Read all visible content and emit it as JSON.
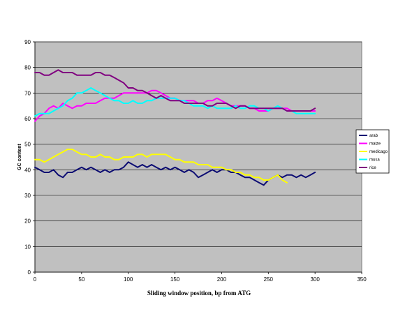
{
  "chart_data": {
    "type": "line",
    "title": "",
    "xlabel": "Sliding window position, bp from ATG",
    "ylabel": "GC content",
    "xlim": [
      0,
      350
    ],
    "ylim": [
      0,
      90
    ],
    "xticks": [
      0,
      50,
      100,
      150,
      200,
      250,
      300,
      350
    ],
    "yticks": [
      0,
      10,
      20,
      30,
      40,
      50,
      60,
      70,
      80,
      90
    ],
    "grid": "horizontal",
    "legend_position": "right",
    "plot_background": "#c0c0c0",
    "series": [
      {
        "name": "arab",
        "color": "#0d0d73",
        "x": [
          0,
          5,
          10,
          15,
          20,
          25,
          30,
          35,
          40,
          45,
          50,
          55,
          60,
          65,
          70,
          75,
          80,
          85,
          90,
          95,
          100,
          105,
          110,
          115,
          120,
          125,
          130,
          135,
          140,
          145,
          150,
          155,
          160,
          165,
          170,
          175,
          180,
          185,
          190,
          195,
          200,
          205,
          210,
          215,
          220,
          225,
          230,
          235,
          240,
          245,
          250,
          255,
          260,
          265,
          270,
          275,
          280,
          285,
          290,
          295,
          300
        ],
        "values": [
          41,
          40,
          39,
          39,
          40,
          38,
          37,
          39,
          39,
          40,
          41,
          40,
          41,
          40,
          39,
          40,
          39,
          40,
          40,
          41,
          43,
          42,
          41,
          42,
          41,
          42,
          41,
          40,
          41,
          40,
          41,
          40,
          39,
          40,
          39,
          37,
          38,
          39,
          40,
          39,
          40,
          40,
          39,
          39,
          38,
          37,
          37,
          36,
          35,
          34,
          36,
          37,
          38,
          37,
          38,
          38,
          37,
          38,
          37,
          38,
          39
        ]
      },
      {
        "name": "maize",
        "color": "#ff00ff",
        "x": [
          0,
          5,
          10,
          15,
          20,
          25,
          30,
          35,
          40,
          45,
          50,
          55,
          60,
          65,
          70,
          75,
          80,
          85,
          90,
          95,
          100,
          105,
          110,
          115,
          120,
          125,
          130,
          135,
          140,
          145,
          150,
          155,
          160,
          165,
          170,
          175,
          180,
          185,
          190,
          195,
          200,
          205,
          210,
          215,
          220,
          225,
          230,
          235,
          240,
          245,
          250,
          255,
          260,
          265,
          270,
          275,
          280,
          285,
          290,
          295,
          300
        ],
        "values": [
          59,
          61,
          62,
          64,
          65,
          64,
          66,
          65,
          64,
          65,
          65,
          66,
          66,
          66,
          67,
          68,
          68,
          68,
          69,
          70,
          70,
          70,
          70,
          70,
          70,
          71,
          71,
          70,
          69,
          68,
          68,
          67,
          67,
          67,
          67,
          66,
          66,
          67,
          67,
          68,
          67,
          66,
          65,
          65,
          65,
          65,
          64,
          64,
          63,
          63,
          63,
          64,
          64,
          64,
          64,
          63,
          63,
          63,
          63,
          63,
          63
        ]
      },
      {
        "name": "medicago",
        "color": "#ffff00",
        "x": [
          0,
          5,
          10,
          15,
          20,
          25,
          30,
          35,
          40,
          45,
          50,
          55,
          60,
          65,
          70,
          75,
          80,
          85,
          90,
          95,
          100,
          105,
          110,
          115,
          120,
          125,
          130,
          135,
          140,
          145,
          150,
          155,
          160,
          165,
          170,
          175,
          180,
          185,
          190,
          195,
          200,
          205,
          210,
          215,
          220,
          225,
          230,
          235,
          240,
          245,
          250,
          255,
          260,
          265,
          270
        ],
        "values": [
          44,
          44,
          43,
          44,
          45,
          46,
          47,
          48,
          48,
          47,
          46,
          46,
          45,
          45,
          46,
          45,
          45,
          44,
          44,
          45,
          45,
          45,
          46,
          46,
          45,
          46,
          46,
          46,
          46,
          45,
          44,
          44,
          43,
          43,
          43,
          42,
          42,
          42,
          41,
          41,
          41,
          40,
          40,
          39,
          39,
          38,
          38,
          37,
          37,
          36,
          36,
          37,
          38,
          36,
          35
        ]
      },
      {
        "name": "musa",
        "color": "#00ffff",
        "x": [
          0,
          5,
          10,
          15,
          20,
          25,
          30,
          35,
          40,
          45,
          50,
          55,
          60,
          65,
          70,
          75,
          80,
          85,
          90,
          95,
          100,
          105,
          110,
          115,
          120,
          125,
          130,
          135,
          140,
          145,
          150,
          155,
          160,
          165,
          170,
          175,
          180,
          185,
          190,
          195,
          200,
          205,
          210,
          215,
          220,
          225,
          230,
          235,
          240,
          245,
          250,
          255,
          260,
          265,
          270,
          275,
          280,
          285,
          290,
          295,
          300
        ],
        "values": [
          61,
          62,
          62,
          62,
          63,
          64,
          65,
          67,
          68,
          70,
          70,
          71,
          72,
          71,
          70,
          69,
          68,
          67,
          67,
          66,
          66,
          67,
          66,
          66,
          67,
          67,
          68,
          68,
          68,
          68,
          68,
          67,
          67,
          66,
          65,
          65,
          65,
          64,
          65,
          64,
          64,
          64,
          64,
          65,
          64,
          64,
          65,
          65,
          64,
          64,
          63,
          64,
          65,
          64,
          63,
          63,
          62,
          62,
          62,
          62,
          62
        ]
      },
      {
        "name": "rice",
        "color": "#800080",
        "x": [
          0,
          5,
          10,
          15,
          20,
          25,
          30,
          35,
          40,
          45,
          50,
          55,
          60,
          65,
          70,
          75,
          80,
          85,
          90,
          95,
          100,
          105,
          110,
          115,
          120,
          125,
          130,
          135,
          140,
          145,
          150,
          155,
          160,
          165,
          170,
          175,
          180,
          185,
          190,
          195,
          200,
          205,
          210,
          215,
          220,
          225,
          230,
          235,
          240,
          245,
          250,
          255,
          260,
          265,
          270,
          275,
          280,
          285,
          290,
          295,
          300
        ],
        "values": [
          78,
          78,
          77,
          77,
          78,
          79,
          78,
          78,
          78,
          77,
          77,
          77,
          77,
          78,
          78,
          77,
          77,
          76,
          75,
          74,
          72,
          72,
          71,
          71,
          70,
          69,
          68,
          69,
          68,
          67,
          67,
          67,
          66,
          66,
          66,
          66,
          66,
          65,
          65,
          66,
          66,
          66,
          65,
          64,
          65,
          65,
          64,
          64,
          64,
          64,
          64,
          64,
          64,
          64,
          63,
          63,
          63,
          63,
          63,
          63,
          64
        ]
      }
    ]
  }
}
